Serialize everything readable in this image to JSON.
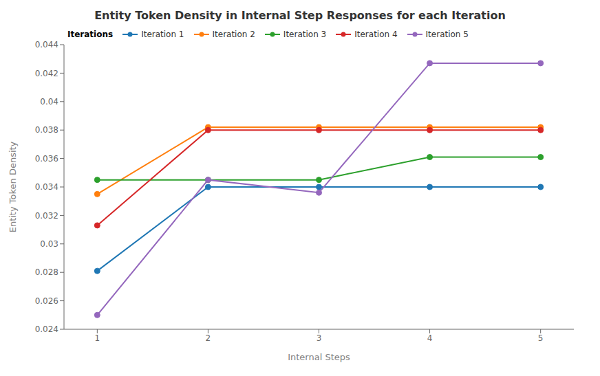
{
  "chart_data": {
    "type": "line",
    "title": "Entity Token Density in Internal Step Responses for each Iteration",
    "xlabel": "Internal Steps",
    "ylabel": "Entity Token Density",
    "x": [
      1,
      2,
      3,
      4,
      5
    ],
    "xlim": [
      0.7,
      5.3
    ],
    "xticks": [
      1,
      2,
      3,
      4,
      5
    ],
    "ylim": [
      0.024,
      0.044
    ],
    "yticks": [
      0.024,
      0.026,
      0.028,
      0.03,
      0.032,
      0.034,
      0.036,
      0.038,
      0.04,
      0.042,
      0.044
    ],
    "grid": false,
    "legend": "upper left",
    "legend_title": "Iterations",
    "series": [
      {
        "name": "Iteration 1",
        "color": "#1f77b4",
        "marker": "circle",
        "values": [
          0.0281,
          0.034,
          0.034,
          0.034,
          0.034
        ]
      },
      {
        "name": "Iteration 2",
        "color": "#ff7f0e",
        "marker": "circle",
        "values": [
          0.0335,
          0.0382,
          0.0382,
          0.0382,
          0.0382
        ]
      },
      {
        "name": "Iteration 3",
        "color": "#2ca02c",
        "marker": "circle",
        "values": [
          0.0345,
          0.0345,
          0.0345,
          0.0361,
          0.0361
        ]
      },
      {
        "name": "Iteration 4",
        "color": "#d62728",
        "marker": "circle",
        "values": [
          0.0313,
          0.038,
          0.038,
          0.038,
          0.038
        ]
      },
      {
        "name": "Iteration 5",
        "color": "#9467bd",
        "marker": "circle",
        "values": [
          0.025,
          0.0345,
          0.0336,
          0.0427,
          0.0427
        ]
      }
    ]
  }
}
